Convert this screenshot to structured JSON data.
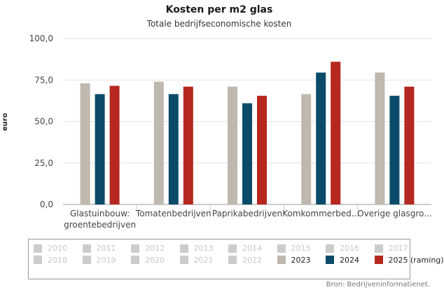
{
  "chart_data": {
    "type": "bar",
    "title": "Kosten per m2 glas",
    "subtitle": "Totale bedrijfseconomische kosten",
    "ylabel": "euro",
    "xlabel": "",
    "ylim": [
      0,
      100
    ],
    "yticks": [
      "0,0",
      "25,0",
      "50,0",
      "75,0",
      "100,0"
    ],
    "ytick_values": [
      0,
      25,
      50,
      75,
      100
    ],
    "categories": [
      [
        "Glastuinbouw:",
        "groentebedrijven"
      ],
      [
        "Tomatenbedrijven"
      ],
      [
        "Paprikabedrijven"
      ],
      [
        "Komkommerbed..."
      ],
      [
        "Overige glasgro..."
      ]
    ],
    "series": [
      {
        "name": "2023",
        "color": "#bfb8ae",
        "values": [
          73,
          74,
          71,
          66.5,
          79.5
        ]
      },
      {
        "name": "2024",
        "color": "#0b4b6a",
        "values": [
          66.5,
          66.5,
          61,
          79.5,
          65.5
        ]
      },
      {
        "name": "2025 (raming)",
        "color": "#b5271f",
        "values": [
          71.5,
          71,
          65.5,
          86,
          71
        ]
      }
    ],
    "legend": {
      "items": [
        {
          "label": "2010",
          "color": "#cccccc",
          "active": false
        },
        {
          "label": "2011",
          "color": "#cccccc",
          "active": false
        },
        {
          "label": "2012",
          "color": "#cccccc",
          "active": false
        },
        {
          "label": "2013",
          "color": "#cccccc",
          "active": false
        },
        {
          "label": "2014",
          "color": "#cccccc",
          "active": false
        },
        {
          "label": "2015",
          "color": "#cccccc",
          "active": false
        },
        {
          "label": "2016",
          "color": "#cccccc",
          "active": false
        },
        {
          "label": "2017",
          "color": "#cccccc",
          "active": false
        },
        {
          "label": "2018",
          "color": "#cccccc",
          "active": false
        },
        {
          "label": "2019",
          "color": "#cccccc",
          "active": false
        },
        {
          "label": "2020",
          "color": "#cccccc",
          "active": false
        },
        {
          "label": "2021",
          "color": "#cccccc",
          "active": false
        },
        {
          "label": "2022",
          "color": "#cccccc",
          "active": false
        },
        {
          "label": "2023",
          "color": "#bfb8ae",
          "active": true
        },
        {
          "label": "2024",
          "color": "#0b4b6a",
          "active": true
        },
        {
          "label": "2025 (raming)",
          "color": "#b5271f",
          "active": true
        }
      ]
    },
    "source": "Bron: Bedrijveninformatienet."
  }
}
